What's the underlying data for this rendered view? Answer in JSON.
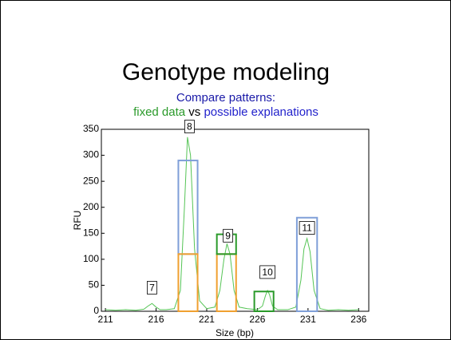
{
  "chart_data": {
    "type": "line",
    "title": "Genotype modeling",
    "subtitle": {
      "line1": "Compare patterns:",
      "fixed": "fixed data",
      "vs": "vs",
      "possible": "possible explanations"
    },
    "xlabel": "Size (bp)",
    "ylabel": "RFU",
    "xlim": [
      210.6,
      237
    ],
    "ylim": [
      0,
      350
    ],
    "xticks": [
      211,
      216,
      221,
      226,
      231,
      236
    ],
    "yticks": [
      0,
      50,
      100,
      150,
      200,
      250,
      300,
      350
    ],
    "series": [
      {
        "color": "#55c455",
        "x": [
          211,
          212,
          213,
          214,
          214.8,
          215.2,
          215.6,
          216,
          216.4,
          217,
          217.8,
          218.4,
          218.8,
          219.1,
          219.4,
          219.8,
          220.3,
          221,
          221.8,
          222.3,
          222.7,
          223,
          223.3,
          223.7,
          224.2,
          225,
          226,
          226.5,
          226.8,
          227,
          227.2,
          227.5,
          228,
          229,
          229.8,
          230.3,
          230.6,
          230.9,
          231.2,
          231.6,
          232.2,
          233,
          234,
          235,
          236
        ],
        "values": [
          3,
          2,
          3,
          2,
          4,
          10,
          15,
          8,
          3,
          3,
          5,
          40,
          200,
          335,
          300,
          120,
          20,
          5,
          8,
          40,
          100,
          130,
          110,
          40,
          8,
          5,
          3,
          10,
          30,
          40,
          32,
          10,
          3,
          3,
          8,
          60,
          120,
          140,
          115,
          40,
          5,
          2,
          3,
          2,
          3
        ]
      }
    ],
    "boxes": [
      {
        "color": "#7f9fd8",
        "x": [
          218.2,
          220.1
        ],
        "y": [
          110,
          290
        ]
      },
      {
        "color": "#f0a030",
        "x": [
          218.2,
          220.1
        ],
        "y": [
          0,
          110
        ]
      },
      {
        "color": "#f0a030",
        "x": [
          222.0,
          223.9
        ],
        "y": [
          0,
          110
        ]
      },
      {
        "color": "#2a9a2a",
        "x": [
          222.0,
          223.9
        ],
        "y": [
          110,
          148
        ]
      },
      {
        "color": "#2a9a2a",
        "x": [
          225.7,
          227.6
        ],
        "y": [
          0,
          38
        ]
      },
      {
        "color": "#7f9fd8",
        "x": [
          229.9,
          231.9
        ],
        "y": [
          0,
          180
        ]
      }
    ],
    "annotations": [
      {
        "text": "7",
        "x": 215.6,
        "y": 30
      },
      {
        "text": "8",
        "x": 219.3,
        "y": 340
      },
      {
        "text": "9",
        "x": 223.1,
        "y": 130
      },
      {
        "text": "10",
        "x": 227.0,
        "y": 60
      },
      {
        "text": "11",
        "x": 230.9,
        "y": 145
      }
    ]
  }
}
